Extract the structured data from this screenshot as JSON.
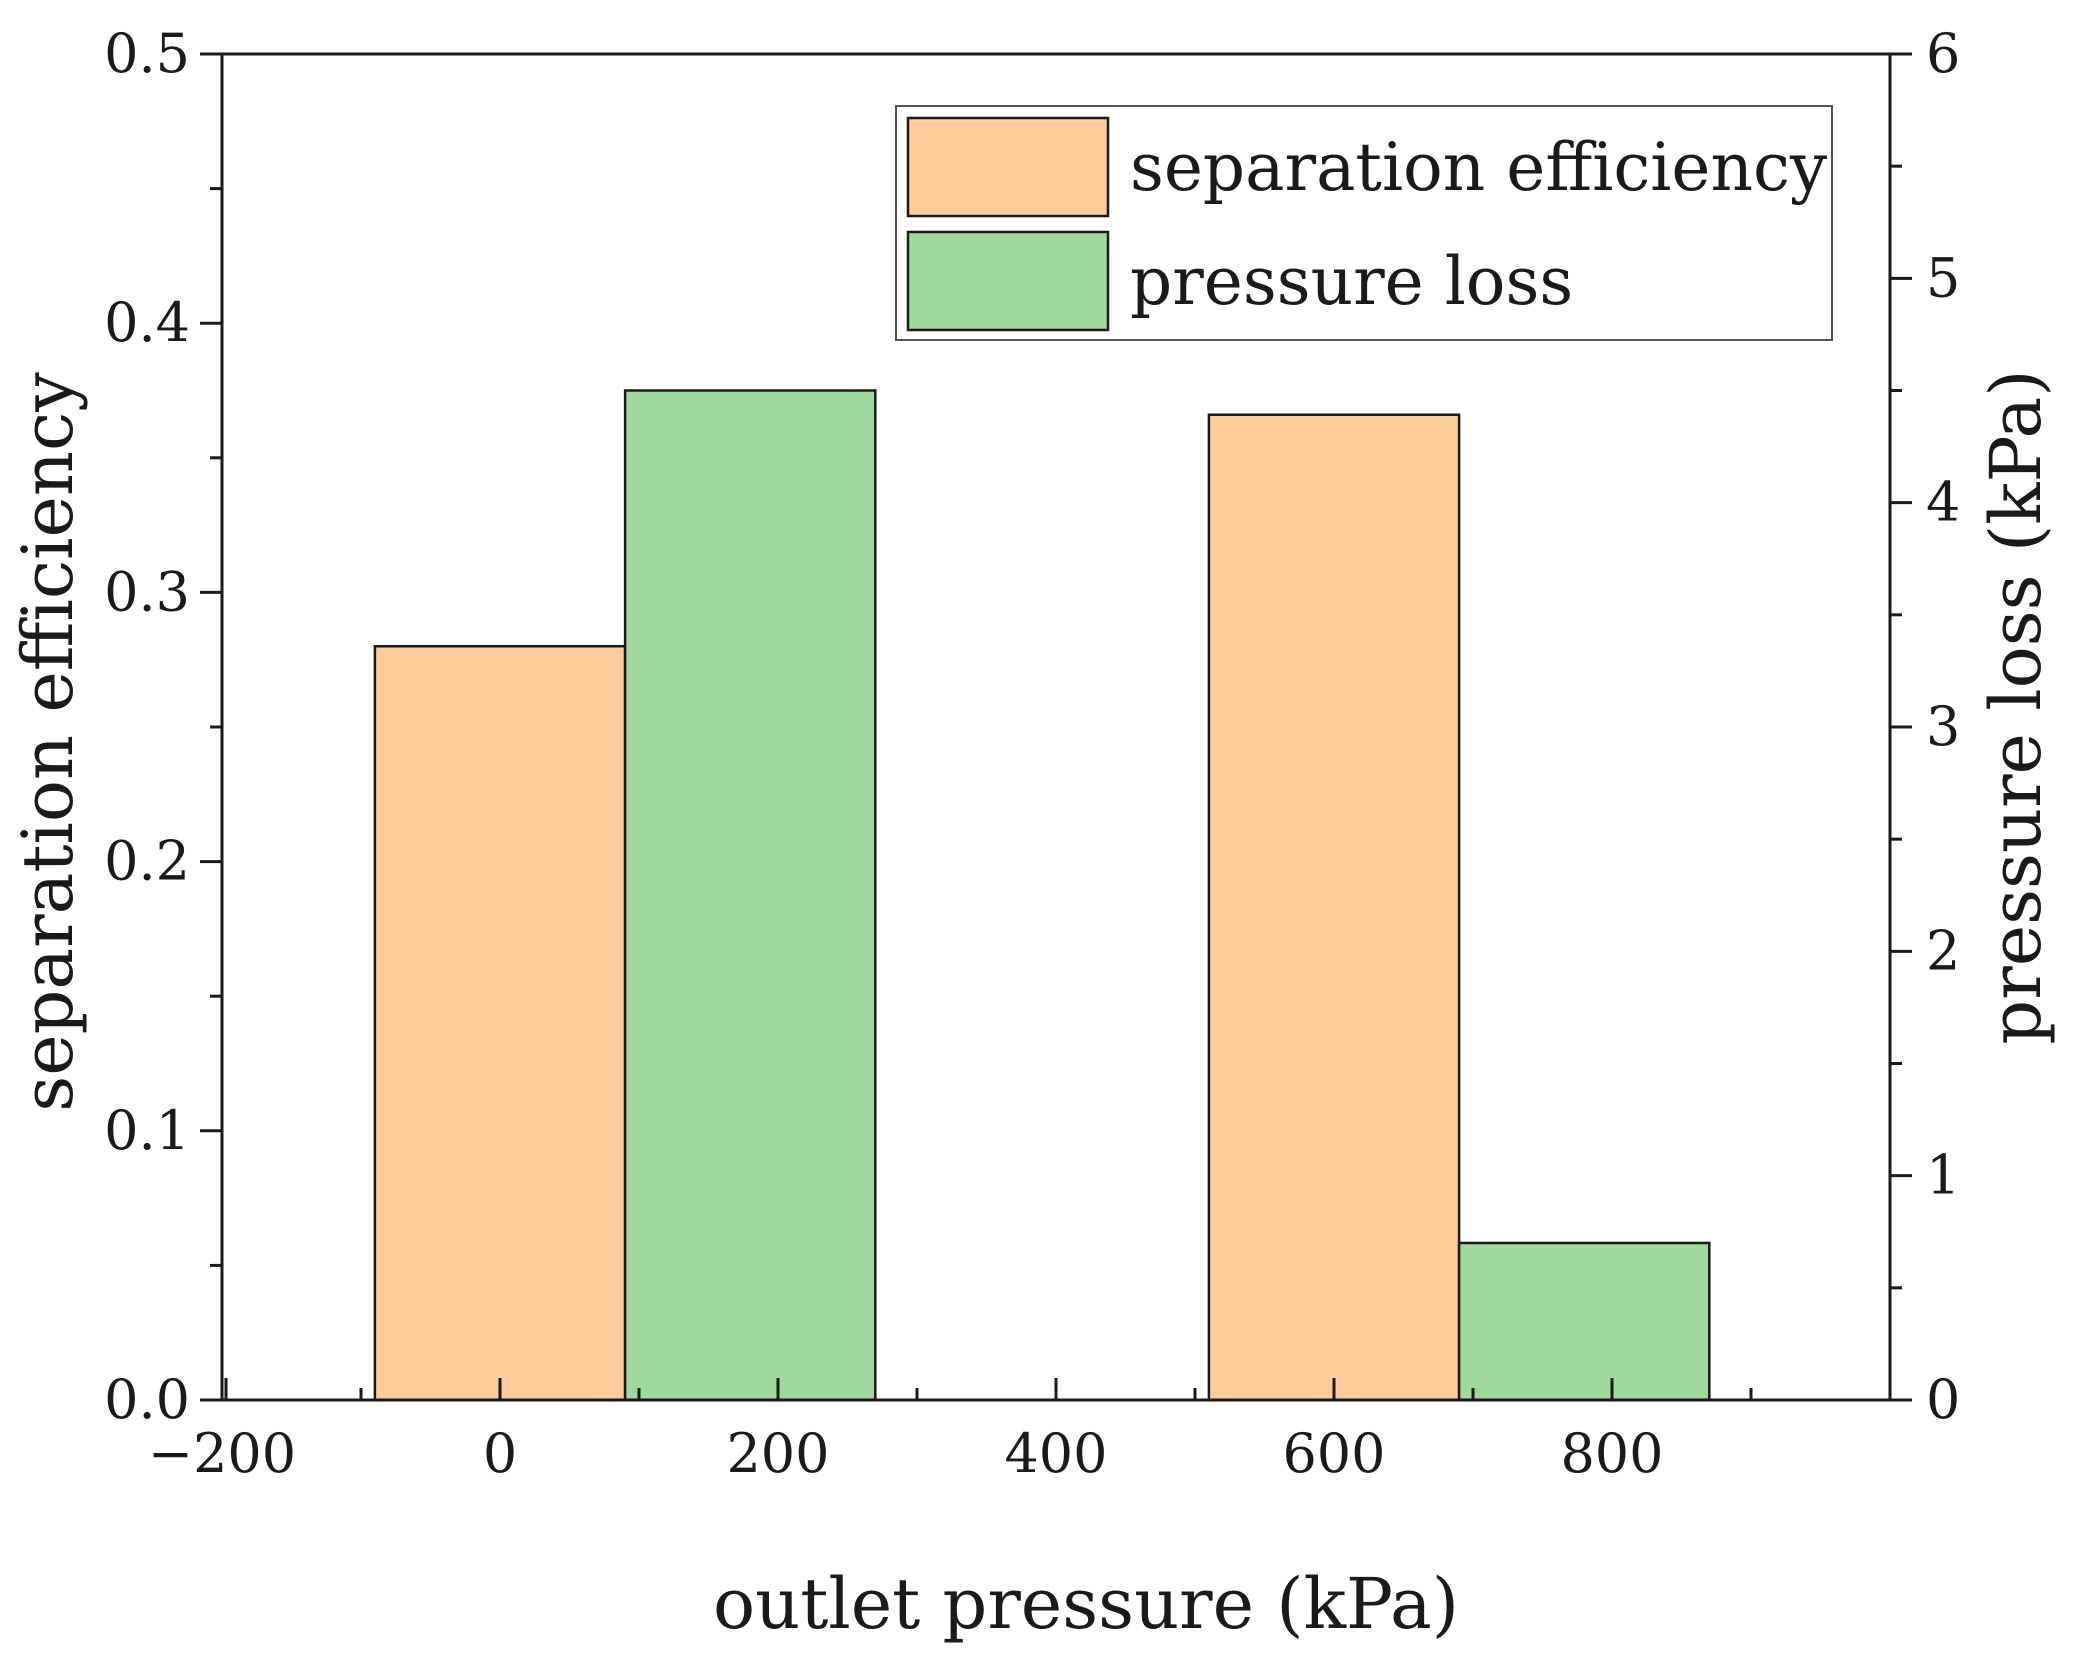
{
  "chart_data": {
    "type": "bar",
    "xlabel": "outlet pressure (kPa)",
    "ylabel_left": "separation efficiency",
    "ylabel_right": "pressure loss (kPa)",
    "xlim": [
      -200,
      1000
    ],
    "ylim_left": [
      0.0,
      0.5
    ],
    "ylim_right": [
      0,
      6
    ],
    "x_tick_values": [
      -200,
      0,
      200,
      400,
      600,
      800
    ],
    "x_tick_labels": [
      "−200",
      "0",
      "200",
      "400",
      "600",
      "800"
    ],
    "y_left_tick_values": [
      0.0,
      0.1,
      0.2,
      0.3,
      0.4,
      0.5
    ],
    "y_left_tick_labels": [
      "0.0",
      "0.1",
      "0.2",
      "0.3",
      "0.4",
      "0.5"
    ],
    "y_right_tick_values": [
      0,
      1,
      2,
      3,
      4,
      5,
      6
    ],
    "y_right_tick_labels": [
      "0",
      "1",
      "2",
      "3",
      "4",
      "5",
      "6"
    ],
    "bar_width": 180,
    "series": [
      {
        "name": "separation efficiency",
        "axis": "left",
        "color": "#FFCC99",
        "points": [
          {
            "x": 0,
            "value": 0.28
          },
          {
            "x": 600,
            "value": 0.366
          }
        ]
      },
      {
        "name": "pressure loss",
        "axis": "right",
        "color": "#9FD99B",
        "points": [
          {
            "x": 180,
            "value": 4.5
          },
          {
            "x": 780,
            "value": 0.7
          }
        ]
      }
    ],
    "legend": {
      "position": "top-right",
      "entries": [
        "separation efficiency",
        "pressure loss"
      ]
    }
  }
}
